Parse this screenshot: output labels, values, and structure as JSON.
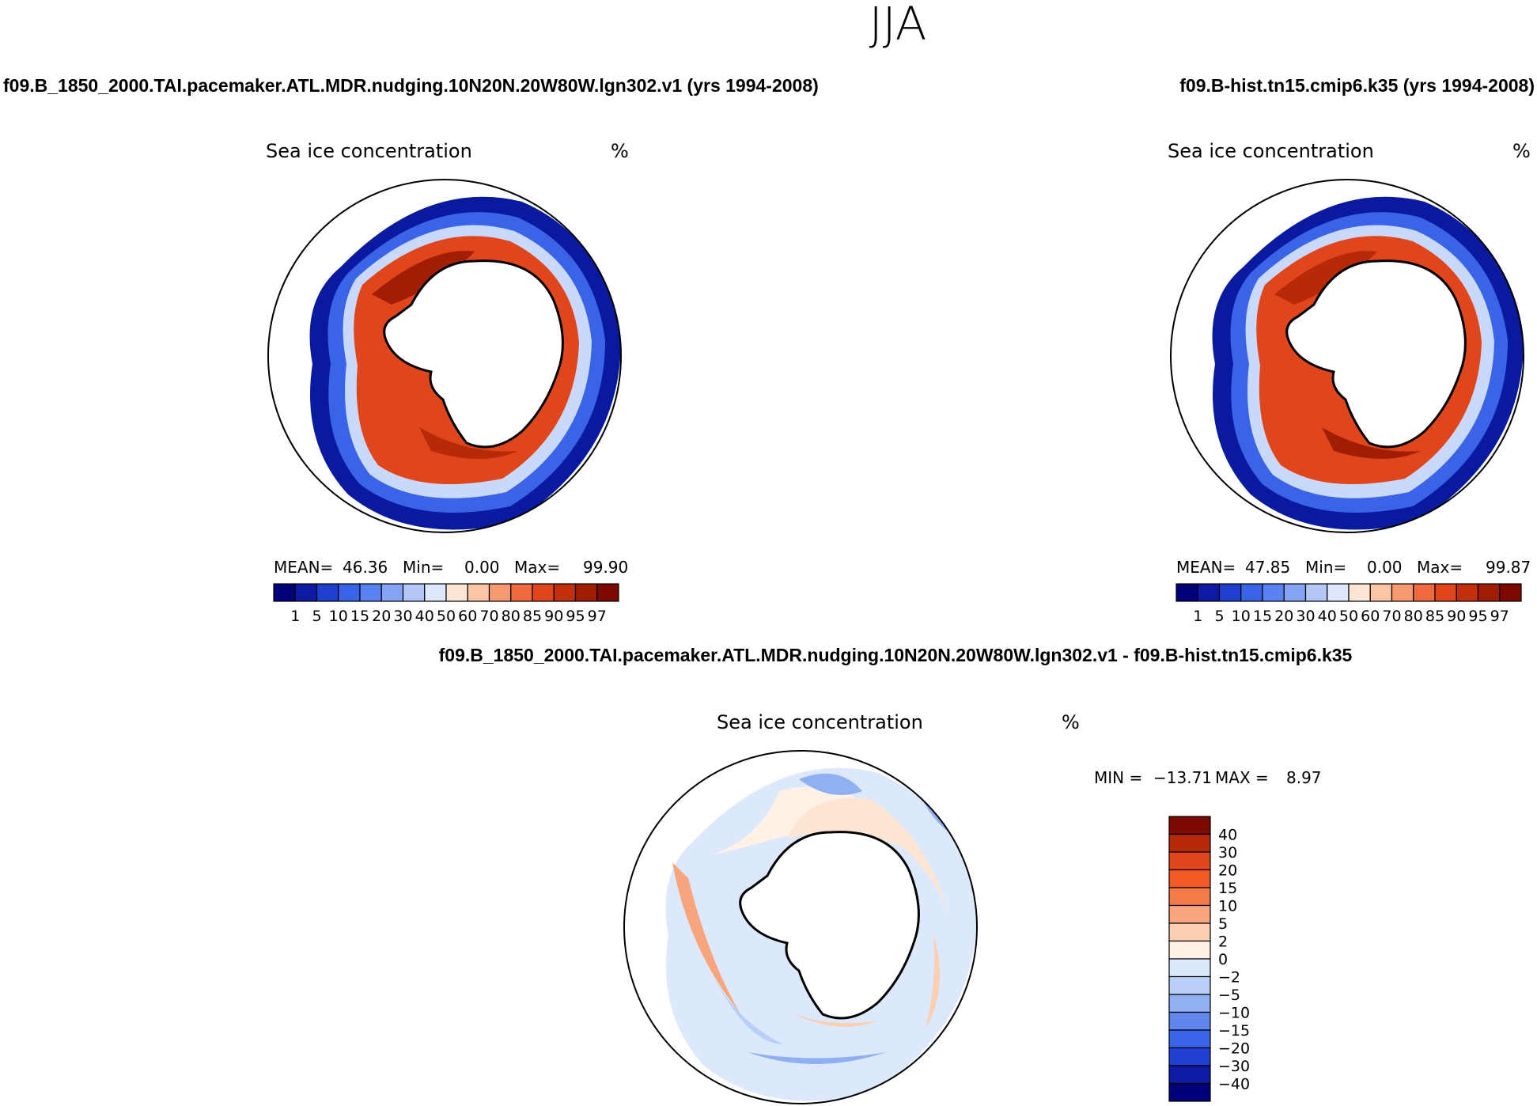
{
  "title": "JJA",
  "chart_data": [
    {
      "type": "heatmap",
      "panel": "top-left",
      "case_title": "f09.B_1850_2000.TAI.pacemaker.ATL.MDR.nudging.10N20N.20W80W.lgn302.v1 (yrs 1994-2008)",
      "variable": "Sea ice concentration",
      "units": "%",
      "projection": "south polar stereographic",
      "stats": {
        "mean_label": "MEAN=",
        "mean": "46.36",
        "min_label": "Min=",
        "min": "0.00",
        "max_label": "Max=",
        "max": "99.90"
      },
      "colorbar": {
        "orientation": "horizontal",
        "levels": [
          "1",
          "5",
          "10",
          "15",
          "20",
          "30",
          "40",
          "50",
          "60",
          "70",
          "80",
          "85",
          "90",
          "95",
          "97"
        ],
        "colors": [
          "#00007a",
          "#0d1aa3",
          "#1f3fd1",
          "#3a64e8",
          "#5a82f0",
          "#86a4f5",
          "#b3c7f9",
          "#dde8fd",
          "#fde5d4",
          "#fcc6a6",
          "#f79a72",
          "#ef6a3e",
          "#e0451b",
          "#c12f0c",
          "#a11e05",
          "#7d0a00"
        ]
      }
    },
    {
      "type": "heatmap",
      "panel": "top-right",
      "case_title": "f09.B-hist.tn15.cmip6.k35 (yrs 1994-2008)",
      "variable": "Sea ice concentration",
      "units": "%",
      "projection": "south polar stereographic",
      "stats": {
        "mean_label": "MEAN=",
        "mean": "47.85",
        "min_label": "Min=",
        "min": "0.00",
        "max_label": "Max=",
        "max": "99.87"
      },
      "colorbar": {
        "orientation": "horizontal",
        "levels": [
          "1",
          "5",
          "10",
          "15",
          "20",
          "30",
          "40",
          "50",
          "60",
          "70",
          "80",
          "85",
          "90",
          "95",
          "97"
        ],
        "colors": [
          "#00007a",
          "#0d1aa3",
          "#1f3fd1",
          "#3a64e8",
          "#5a82f0",
          "#86a4f5",
          "#b3c7f9",
          "#dde8fd",
          "#fde5d4",
          "#fcc6a6",
          "#f79a72",
          "#ef6a3e",
          "#e0451b",
          "#c12f0c",
          "#a11e05",
          "#7d0a00"
        ]
      }
    },
    {
      "type": "heatmap",
      "panel": "bottom",
      "case_title": "f09.B_1850_2000.TAI.pacemaker.ATL.MDR.nudging.10N20N.20W80W.lgn302.v1 - f09.B-hist.tn15.cmip6.k35",
      "variable": "Sea ice concentration",
      "units": "%",
      "projection": "south polar stereographic",
      "stats": {
        "min_label": "MIN =",
        "min": "−13.71",
        "max_label": "MAX =",
        "max": "8.97"
      },
      "colorbar": {
        "orientation": "vertical",
        "levels": [
          "40",
          "30",
          "20",
          "15",
          "10",
          "5",
          "2",
          "0",
          "−2",
          "−5",
          "−10",
          "−15",
          "−20",
          "−30",
          "−40"
        ],
        "colors": [
          "#7d0a00",
          "#b72a08",
          "#e0451b",
          "#f25a26",
          "#f47a48",
          "#f8a47c",
          "#fccfb2",
          "#fff1e6",
          "#dce8fb",
          "#b9cff8",
          "#8fb0f3",
          "#5f87ee",
          "#3a64e8",
          "#1f3fd1",
          "#0d1aa3",
          "#00007a"
        ]
      }
    }
  ]
}
